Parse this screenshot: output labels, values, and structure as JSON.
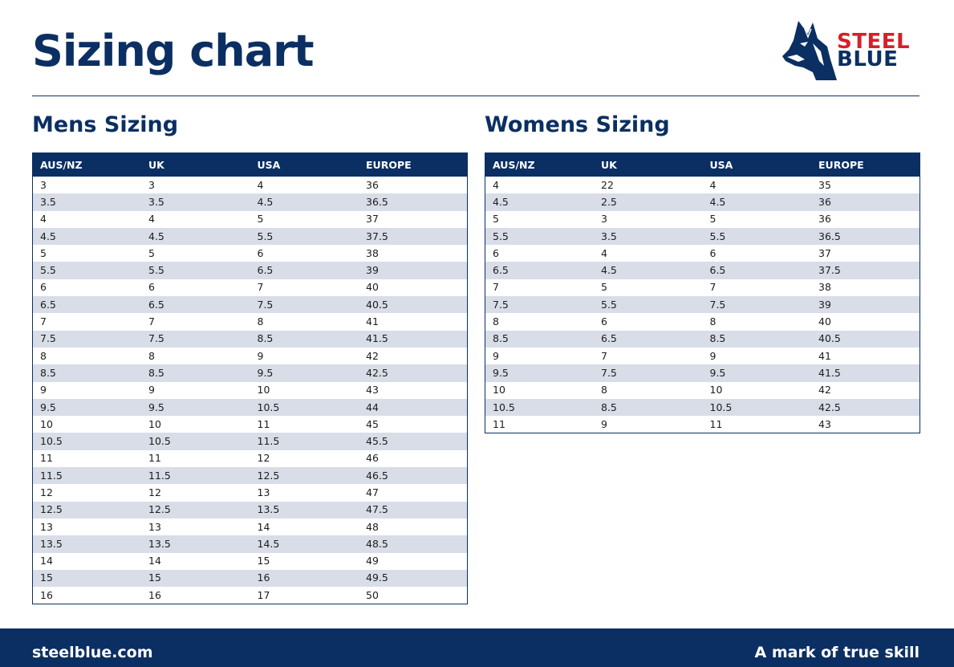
{
  "header": {
    "title": "Sizing chart",
    "logo": {
      "line1": "STEEL",
      "line2": "BLUE",
      "icon": "wolf-head-icon"
    }
  },
  "colors": {
    "navy": "#0b2f62",
    "red": "#d71f2a",
    "row_alt": "#d8dde7"
  },
  "mens": {
    "title": "Mens Sizing",
    "columns": [
      "AUS/NZ",
      "UK",
      "USA",
      "EUROPE"
    ],
    "rows": [
      [
        "3",
        "3",
        "4",
        "36"
      ],
      [
        "3.5",
        "3.5",
        "4.5",
        "36.5"
      ],
      [
        "4",
        "4",
        "5",
        "37"
      ],
      [
        "4.5",
        "4.5",
        "5.5",
        "37.5"
      ],
      [
        "5",
        "5",
        "6",
        "38"
      ],
      [
        "5.5",
        "5.5",
        "6.5",
        "39"
      ],
      [
        "6",
        "6",
        "7",
        "40"
      ],
      [
        "6.5",
        "6.5",
        "7.5",
        "40.5"
      ],
      [
        "7",
        "7",
        "8",
        "41"
      ],
      [
        "7.5",
        "7.5",
        "8.5",
        "41.5"
      ],
      [
        "8",
        "8",
        "9",
        "42"
      ],
      [
        "8.5",
        "8.5",
        "9.5",
        "42.5"
      ],
      [
        "9",
        "9",
        "10",
        "43"
      ],
      [
        "9.5",
        "9.5",
        "10.5",
        "44"
      ],
      [
        "10",
        "10",
        "11",
        "45"
      ],
      [
        "10.5",
        "10.5",
        "11.5",
        "45.5"
      ],
      [
        "11",
        "11",
        "12",
        "46"
      ],
      [
        "11.5",
        "11.5",
        "12.5",
        "46.5"
      ],
      [
        "12",
        "12",
        "13",
        "47"
      ],
      [
        "12.5",
        "12.5",
        "13.5",
        "47.5"
      ],
      [
        "13",
        "13",
        "14",
        "48"
      ],
      [
        "13.5",
        "13.5",
        "14.5",
        "48.5"
      ],
      [
        "14",
        "14",
        "15",
        "49"
      ],
      [
        "15",
        "15",
        "16",
        "49.5"
      ],
      [
        "16",
        "16",
        "17",
        "50"
      ]
    ]
  },
  "womens": {
    "title": "Womens Sizing",
    "columns": [
      "AUS/NZ",
      "UK",
      "USA",
      "EUROPE"
    ],
    "rows": [
      [
        "4",
        "22",
        "4",
        "35"
      ],
      [
        "4.5",
        "2.5",
        "4.5",
        "36"
      ],
      [
        "5",
        "3",
        "5",
        "36"
      ],
      [
        "5.5",
        "3.5",
        "5.5",
        "36.5"
      ],
      [
        "6",
        "4",
        "6",
        "37"
      ],
      [
        "6.5",
        "4.5",
        "6.5",
        "37.5"
      ],
      [
        "7",
        "5",
        "7",
        "38"
      ],
      [
        "7.5",
        "5.5",
        "7.5",
        "39"
      ],
      [
        "8",
        "6",
        "8",
        "40"
      ],
      [
        "8.5",
        "6.5",
        "8.5",
        "40.5"
      ],
      [
        "9",
        "7",
        "9",
        "41"
      ],
      [
        "9.5",
        "7.5",
        "9.5",
        "41.5"
      ],
      [
        "10",
        "8",
        "10",
        "42"
      ],
      [
        "10.5",
        "8.5",
        "10.5",
        "42.5"
      ],
      [
        "11",
        "9",
        "11",
        "43"
      ]
    ]
  },
  "footer": {
    "website": "steelblue.com",
    "tagline": "A mark of true skill"
  }
}
